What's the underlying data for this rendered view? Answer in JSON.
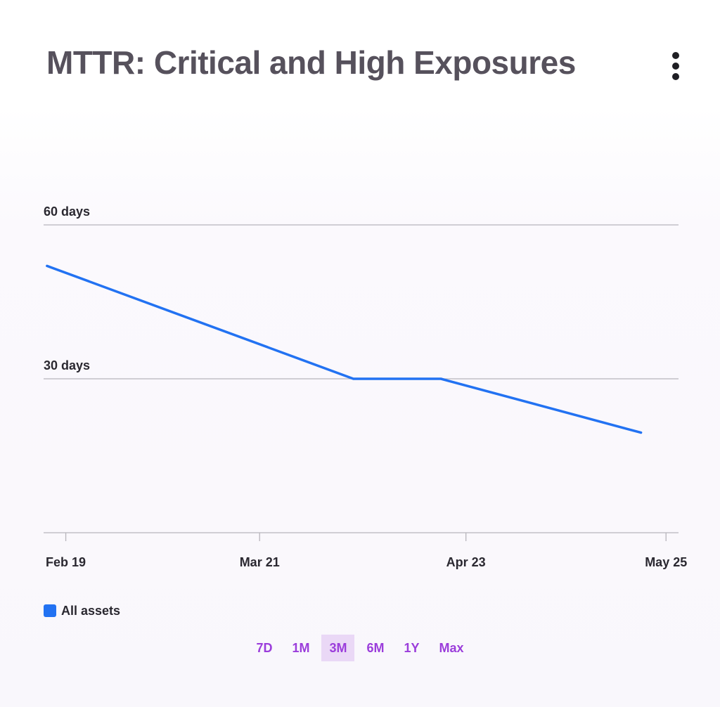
{
  "header": {
    "title": "MTTR: Critical and High Exposures",
    "menu_icon": "kebab-vertical-icon"
  },
  "chart_data": {
    "type": "line",
    "title": "MTTR: Critical and High Exposures",
    "xlabel": "",
    "ylabel": "",
    "x_tick_labels": [
      "Feb 19",
      "Mar 21",
      "Apr 23",
      "May 25"
    ],
    "y_tick_labels": [
      "30 days",
      "60 days"
    ],
    "y_ticks": [
      30,
      60
    ],
    "ylim": [
      0,
      60
    ],
    "grid": true,
    "legend_placement": "bottom-left",
    "series": [
      {
        "name": "All assets",
        "color": "#2272f2",
        "points": [
          {
            "x": "Feb 16",
            "y": 52
          },
          {
            "x": "Apr 5",
            "y": 30
          },
          {
            "x": "Apr 19",
            "y": 30
          },
          {
            "x": "May 21",
            "y": 19.5
          }
        ]
      }
    ]
  },
  "legend": {
    "items": [
      {
        "label": "All assets",
        "color": "#2272f2"
      }
    ]
  },
  "ranges": {
    "options": [
      "7D",
      "1M",
      "3M",
      "6M",
      "1Y",
      "Max"
    ],
    "selected": "3M"
  },
  "colors": {
    "title": "#56515c",
    "grid": "#b7b5bb",
    "axis_text": "#2a2830",
    "range_text": "#9b3ddb",
    "range_active_bg": "#ead8f6"
  }
}
